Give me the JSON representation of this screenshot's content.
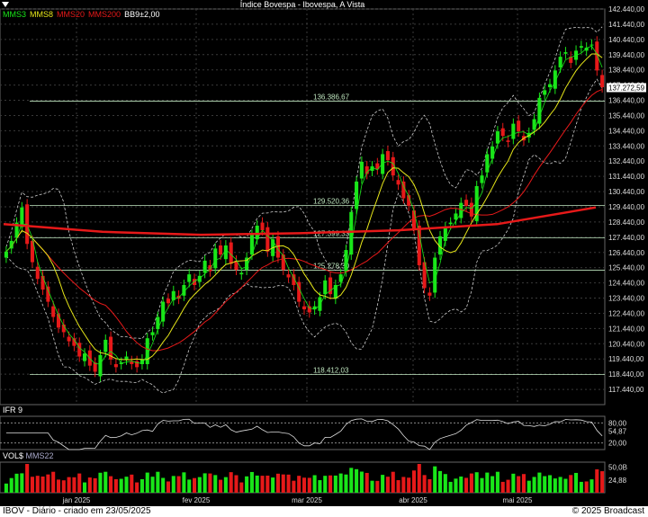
{
  "window": {
    "title": "Índice Bovespa - Ibovespa, A Vista"
  },
  "legend": [
    {
      "label": "MMS3",
      "color": "#19e619"
    },
    {
      "label": "MMS8",
      "color": "#e6e619"
    },
    {
      "label": "MMS20",
      "color": "#e61919"
    },
    {
      "label": "MMS200",
      "color": "#e61919"
    },
    {
      "label": "BB9±2,00",
      "color": "#ffffff"
    }
  ],
  "panels": {
    "rsi_label": "IFR 9",
    "volume_label": "VOL$",
    "volume_ma_label": "MMS22"
  },
  "footer": {
    "left": "IBOV - Diário - criado em 23/05/2025",
    "right": "© 2025 Broadcast"
  },
  "colors": {
    "up": "#19e619",
    "down": "#e61919",
    "grid": "#3a3a3a",
    "ma3": "#19e619",
    "ma8": "#e6e619",
    "ma20": "#e61919",
    "ma200": "#e61919",
    "bands": "#cccccc",
    "hline": "#bfe6bf"
  },
  "chart_data": [
    {
      "type": "candlestick",
      "ylim": [
        116440,
        142440
      ],
      "y_ticks": [
        "142.440,00",
        "141.440,00",
        "140.440,00",
        "139.440,00",
        "138.440,00",
        "137.440,00",
        "136.440,00",
        "135.440,00",
        "134.440,00",
        "133.440,00",
        "132.440,00",
        "131.440,00",
        "130.440,00",
        "129.440,00",
        "128.440,00",
        "127.440,00",
        "126.440,00",
        "125.440,00",
        "124.440,00",
        "123.440,00",
        "122.440,00",
        "121.440,00",
        "120.440,00",
        "119.440,00",
        "118.440,00",
        "117.440,00"
      ],
      "x_labels": [
        "jan 2025",
        "fev 2025",
        "mar 2025",
        "abr 2025",
        "mai 2025"
      ],
      "last_price_label": "137.272,59",
      "last_price": 137272.59,
      "levels": [
        {
          "value": 136386.67,
          "label": "136.386,67"
        },
        {
          "value": 129520.36,
          "label": "129.520,36"
        },
        {
          "value": 127399.33,
          "label": "127.399,33"
        },
        {
          "value": 125278.3,
          "label": "125.278,30"
        },
        {
          "value": 118412.03,
          "label": "118.412,03"
        }
      ],
      "closes": [
        126500,
        127200,
        128400,
        129400,
        127000,
        125800,
        124700,
        124000,
        123200,
        122200,
        121500,
        121200,
        120600,
        120300,
        119600,
        119800,
        119000,
        118600,
        119700,
        120700,
        119400,
        118900,
        119200,
        119600,
        119100,
        118900,
        119400,
        120800,
        121200,
        122200,
        123200,
        123100,
        123900,
        123400,
        124300,
        125000,
        124300,
        124900,
        125900,
        125200,
        126700,
        126300,
        126900,
        125700,
        125300,
        125100,
        126100,
        127600,
        128200,
        127900,
        126500,
        127300,
        126100,
        125300,
        124800,
        124300,
        123200,
        122700,
        122500,
        122900,
        123500,
        124600,
        123700,
        124300,
        125000,
        126600,
        129100,
        131100,
        132400,
        131600,
        132100,
        131900,
        132900,
        132500,
        131500,
        130900,
        130000,
        129500,
        128000,
        125600,
        124100,
        123600,
        126100,
        127500,
        128100,
        128400,
        129000,
        129700,
        129500,
        128800,
        130800,
        131500,
        132900,
        133400,
        134400,
        134100,
        133700,
        134900,
        134400,
        133800,
        134300,
        135200,
        136600,
        137100,
        137500,
        138400,
        139300,
        139600,
        138900,
        139700,
        140000,
        139900,
        140100,
        138400,
        137300
      ],
      "ma20_end": 136600,
      "ma200": [
        128300,
        127800,
        127600,
        127700,
        127900,
        128300,
        129400
      ],
      "rsi": {
        "ylim": [
          0,
          100
        ],
        "ticks": [
          "80,00",
          "54,87",
          "20,00"
        ],
        "last": 54.87
      },
      "volume": {
        "ticks": [
          "50,0B",
          "24,88"
        ],
        "last_ma": 24.88
      }
    }
  ]
}
